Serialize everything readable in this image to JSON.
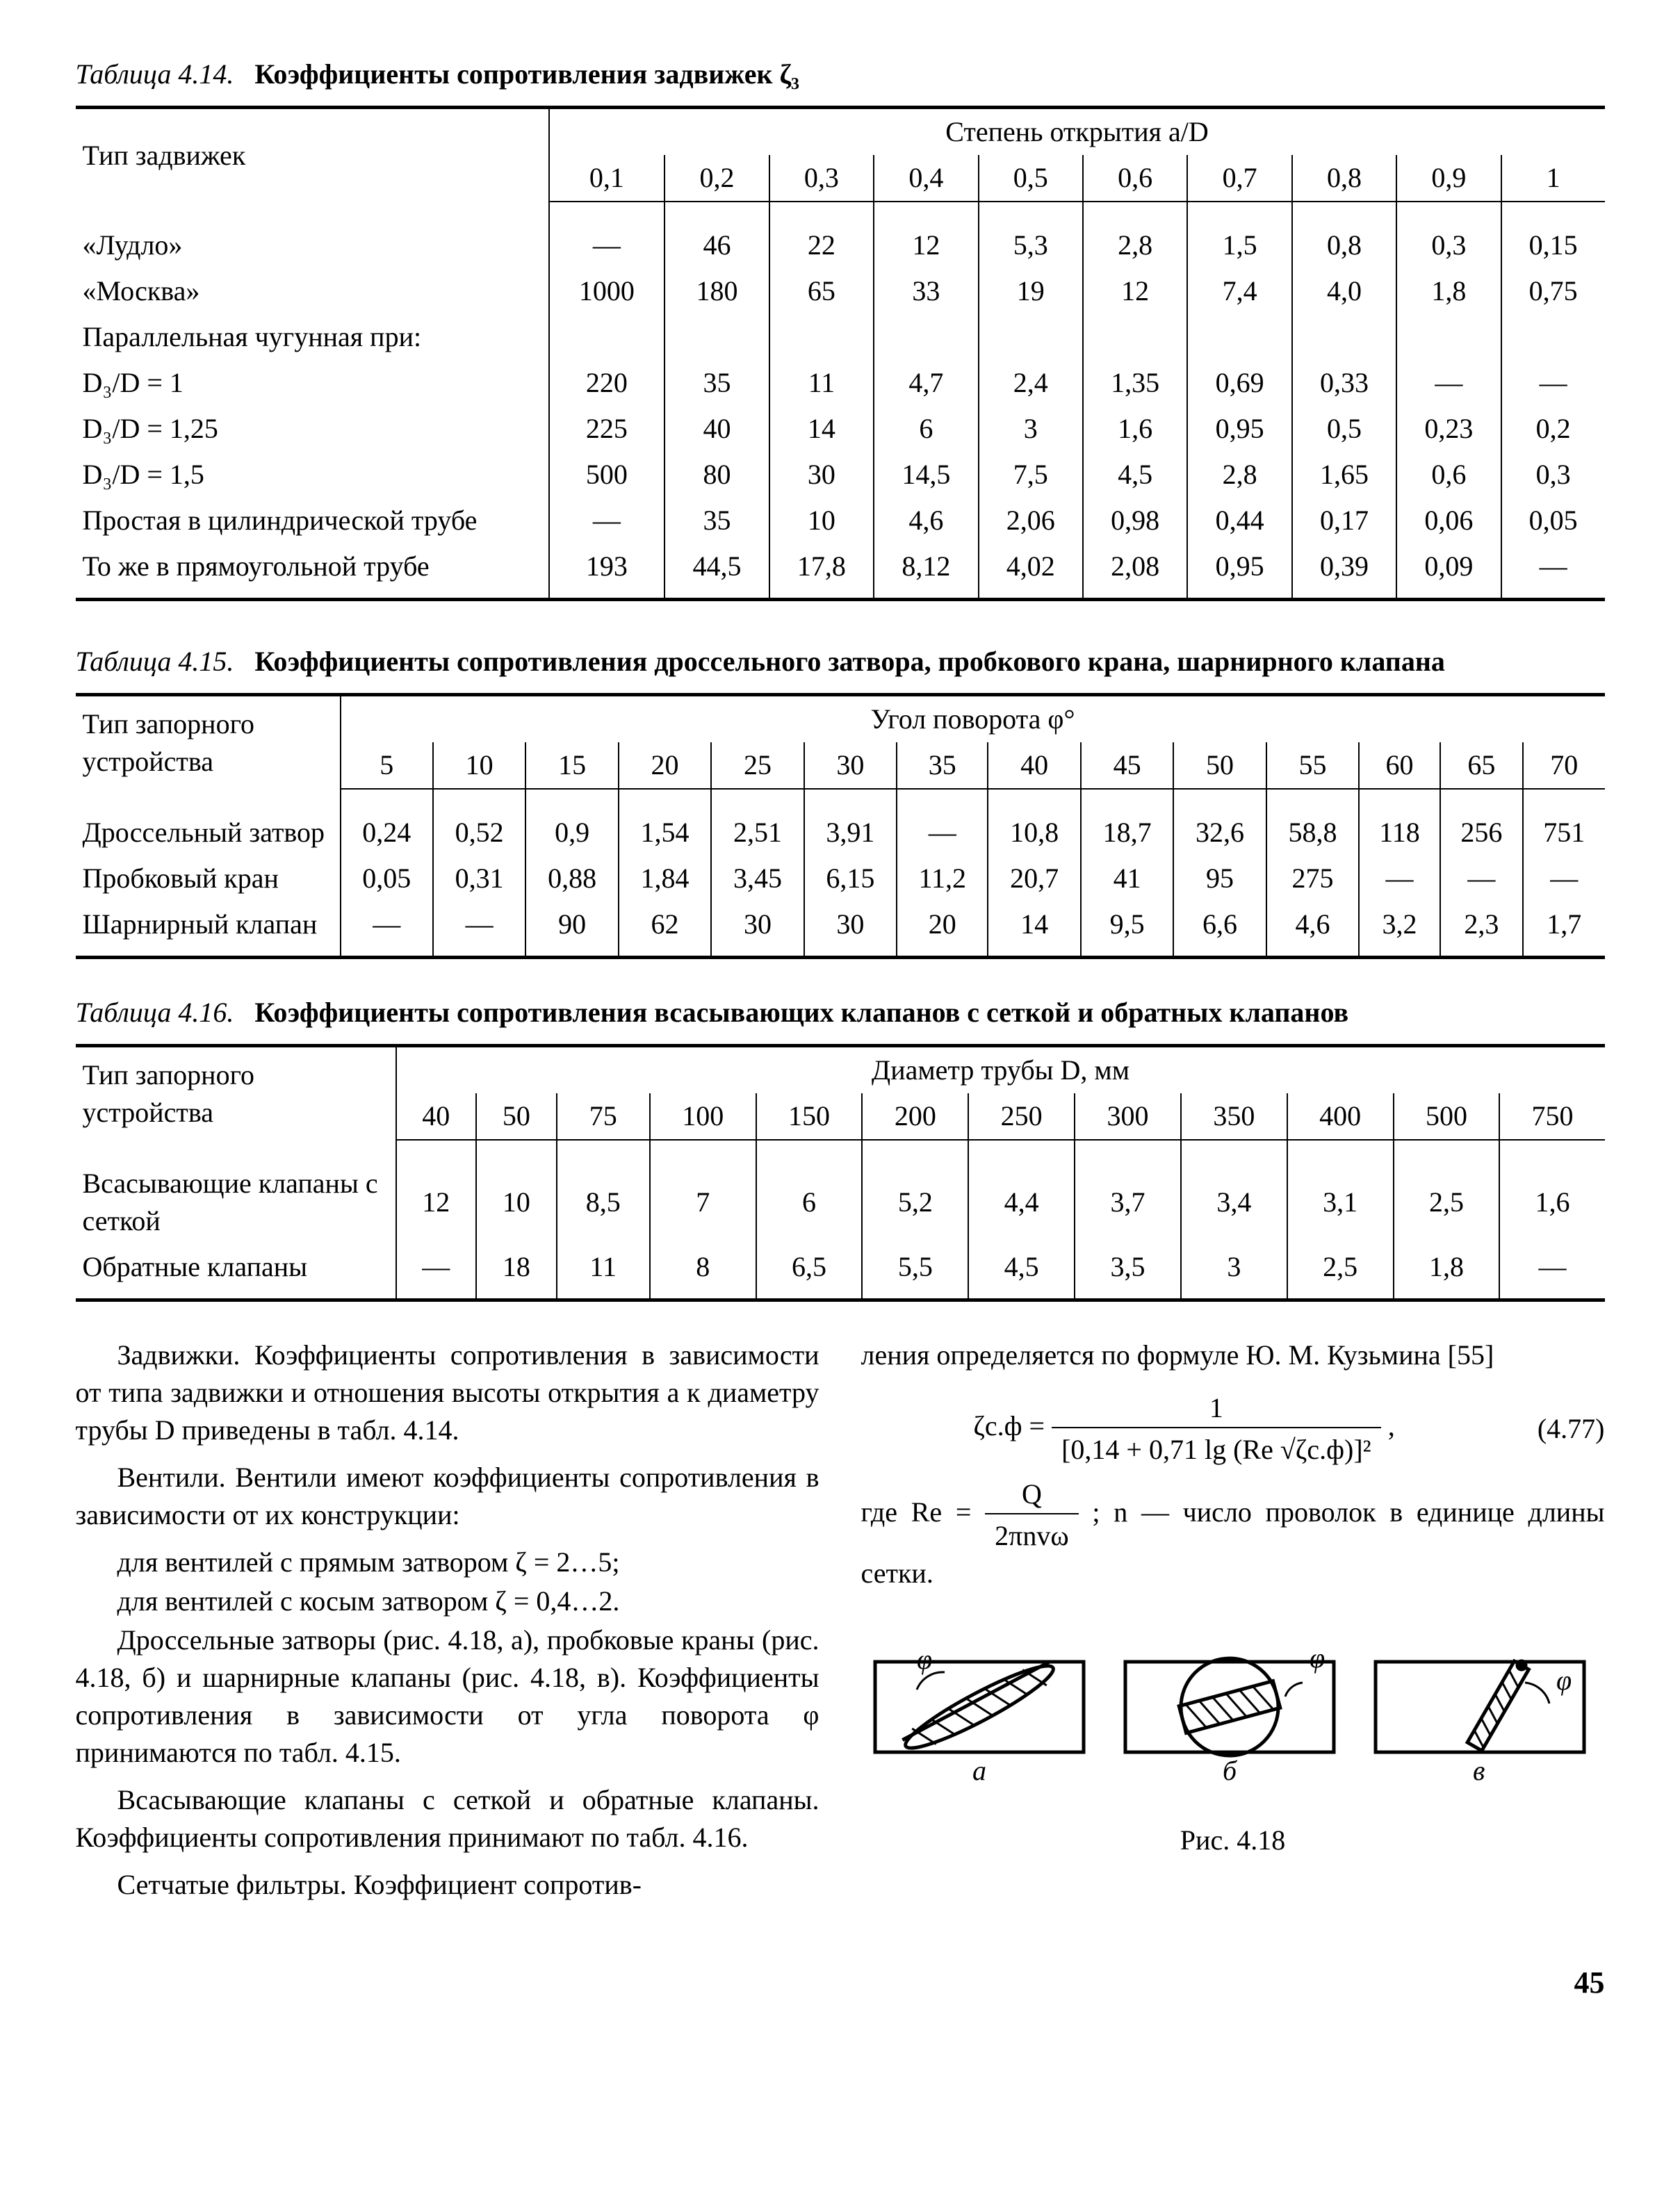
{
  "page_number": "45",
  "colors": {
    "text": "#000000",
    "background": "#ffffff",
    "rule": "#000000"
  },
  "table414": {
    "caption_name": "Таблица 4.14.",
    "caption_title": "Коэффициенты сопротивления задвижек ζ₃",
    "row_header": "Тип задвижек",
    "group_header": "Степень открытия a/D",
    "cols": [
      "0,1",
      "0,2",
      "0,3",
      "0,4",
      "0,5",
      "0,6",
      "0,7",
      "0,8",
      "0,9",
      "1"
    ],
    "rows": [
      {
        "label": "«Лудло»",
        "v": [
          "—",
          "46",
          "22",
          "12",
          "5,3",
          "2,8",
          "1,5",
          "0,8",
          "0,3",
          "0,15"
        ]
      },
      {
        "label": "«Москва»",
        "v": [
          "1000",
          "180",
          "65",
          "33",
          "19",
          "12",
          "7,4",
          "4,0",
          "1,8",
          "0,75"
        ]
      },
      {
        "label": "Параллельная чугунная при:",
        "v": [
          "",
          "",
          "",
          "",
          "",
          "",
          "",
          "",
          "",
          ""
        ]
      },
      {
        "label": "D₃/D = 1",
        "v": [
          "220",
          "35",
          "11",
          "4,7",
          "2,4",
          "1,35",
          "0,69",
          "0,33",
          "—",
          "—"
        ]
      },
      {
        "label": "D₃/D = 1,25",
        "v": [
          "225",
          "40",
          "14",
          "6",
          "3",
          "1,6",
          "0,95",
          "0,5",
          "0,23",
          "0,2"
        ]
      },
      {
        "label": "D₃/D = 1,5",
        "v": [
          "500",
          "80",
          "30",
          "14,5",
          "7,5",
          "4,5",
          "2,8",
          "1,65",
          "0,6",
          "0,3"
        ]
      },
      {
        "label": "Простая в цилиндрической трубе",
        "v": [
          "—",
          "35",
          "10",
          "4,6",
          "2,06",
          "0,98",
          "0,44",
          "0,17",
          "0,06",
          "0,05"
        ]
      },
      {
        "label": "То же в прямоугольной трубе",
        "v": [
          "193",
          "44,5",
          "17,8",
          "8,12",
          "4,02",
          "2,08",
          "0,95",
          "0,39",
          "0,09",
          "—"
        ]
      }
    ]
  },
  "table415": {
    "caption_name": "Таблица 4.15.",
    "caption_title": "Коэффициенты сопротивления дроссельного затвора, пробкового крана, шарнирного клапана",
    "row_header": "Тип запорного устройства",
    "group_header": "Угол поворота φ°",
    "cols": [
      "5",
      "10",
      "15",
      "20",
      "25",
      "30",
      "35",
      "40",
      "45",
      "50",
      "55",
      "60",
      "65",
      "70"
    ],
    "rows": [
      {
        "label": "Дроссельный затвор",
        "v": [
          "0,24",
          "0,52",
          "0,9",
          "1,54",
          "2,51",
          "3,91",
          "—",
          "10,8",
          "18,7",
          "32,6",
          "58,8",
          "118",
          "256",
          "751"
        ]
      },
      {
        "label": "Пробковый кран",
        "v": [
          "0,05",
          "0,31",
          "0,88",
          "1,84",
          "3,45",
          "6,15",
          "11,2",
          "20,7",
          "41",
          "95",
          "275",
          "—",
          "—",
          "—"
        ]
      },
      {
        "label": "Шарнирный кла­пан",
        "v": [
          "—",
          "—",
          "90",
          "62",
          "30",
          "30",
          "20",
          "14",
          "9,5",
          "6,6",
          "4,6",
          "3,2",
          "2,3",
          "1,7"
        ]
      }
    ]
  },
  "table416": {
    "caption_name": "Таблица 4.16.",
    "caption_title": "Коэффициенты сопротивления всасывающих клапанов с сеткой и обратных клапанов",
    "row_header": "Тип запорного устройства",
    "group_header": "Диаметр трубы D, мм",
    "cols": [
      "40",
      "50",
      "75",
      "100",
      "150",
      "200",
      "250",
      "300",
      "350",
      "400",
      "500",
      "750"
    ],
    "rows": [
      {
        "label": "Всасывающие кла­паны с сеткой",
        "v": [
          "12",
          "10",
          "8,5",
          "7",
          "6",
          "5,2",
          "4,4",
          "3,7",
          "3,4",
          "3,1",
          "2,5",
          "1,6"
        ]
      },
      {
        "label": "Обратные клапаны",
        "v": [
          "—",
          "18",
          "11",
          "8",
          "6,5",
          "5,5",
          "4,5",
          "3,5",
          "3",
          "2,5",
          "1,8",
          "—"
        ]
      }
    ]
  },
  "text": {
    "p1": "Задвижки. Коэффициенты сопротивления в зависимости от типа задвижки и отношения вы­соты открытия a к диаметру трубы D приведены в табл. 4.14.",
    "p2": "Вентили. Вентили имеют коэффициенты со­противления в зависимости от их конструкции:",
    "p2a": "для вентилей с прямым затвором ζ = 2…5;",
    "p2b": "для вентилей с косым затвором ζ = 0,4…2.",
    "p3": "Дроссельные затворы (рис. 4.18, а), пробковые краны (рис. 4.18, б) и шарнирные клапаны (рис. 4.18, в). Коэффициенты сопротивления в зависимости от угла поворота φ принимаются по табл. 4.15.",
    "p4": "Всасывающие клапаны с сеткой и обратные клапаны. Коэффициенты сопротивления прини­мают по табл. 4.16.",
    "p5": "Сетчатые фильтры. Коэффициент сопротив-",
    "r1": "ления определяется по формуле Ю. М. Кузьми­на [55]",
    "eq_lhs": "ζс.ф =",
    "eq_num": "(4.77)",
    "eq_num_top": "1",
    "eq_den": "[0,14 + 0,71 lg (Re √ζс.ф)]²",
    "r2a": "где Re = ",
    "r2_num": "Q",
    "r2_den": "2πnvω",
    "r2b": "; n — число проволок в еди­нице длины сетки.",
    "fig_caption": "Рис. 4.18",
    "fig_labels": {
      "a": "а",
      "b": "б",
      "c": "в",
      "phi": "φ"
    }
  }
}
